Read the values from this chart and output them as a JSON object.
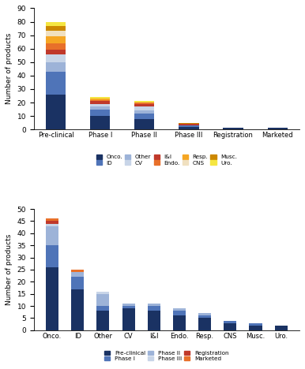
{
  "chart1": {
    "ylabel": "Number of products",
    "ylim": [
      0,
      90
    ],
    "yticks": [
      0,
      10,
      20,
      30,
      40,
      50,
      60,
      70,
      80,
      90
    ],
    "categories": [
      "Pre-clinical",
      "Phase I",
      "Phase II",
      "Phase III",
      "Registration",
      "Marketed"
    ],
    "legend_labels": [
      "Onco.",
      "ID",
      "Other",
      "CV",
      "I&I",
      "Endo.",
      "Resp.",
      "CNS",
      "Musc.",
      "Uro."
    ],
    "colors": [
      "#1a3263",
      "#4f74b8",
      "#9db3d8",
      "#c8d5e8",
      "#c0392b",
      "#e8702a",
      "#f5a623",
      "#f0e0c0",
      "#cc8800",
      "#f5e642"
    ],
    "data": {
      "Onco.": [
        26,
        10,
        8,
        2,
        1,
        1
      ],
      "ID": [
        17,
        5,
        4,
        1,
        0,
        0
      ],
      "Other": [
        7,
        2,
        2,
        0,
        0,
        0
      ],
      "CV": [
        6,
        2,
        3,
        0,
        0,
        0
      ],
      "I&I": [
        3,
        2,
        2,
        1,
        0,
        0
      ],
      "Endo.": [
        5,
        1,
        1,
        0,
        0,
        0
      ],
      "Resp.": [
        5,
        1,
        0,
        0,
        0,
        0
      ],
      "CNS": [
        4,
        0,
        0,
        0,
        0,
        0
      ],
      "Musc.": [
        4,
        0,
        0,
        1,
        0,
        0
      ],
      "Uro.": [
        3,
        1,
        1,
        0,
        0,
        0
      ]
    }
  },
  "chart2": {
    "ylabel": "Number of products",
    "ylim": [
      0,
      50
    ],
    "yticks": [
      0,
      5,
      10,
      15,
      20,
      25,
      30,
      35,
      40,
      45,
      50
    ],
    "categories": [
      "Onco.",
      "ID",
      "Other",
      "CV",
      "I&I",
      "Endo.",
      "Resp.",
      "CNS",
      "Musc.",
      "Uro."
    ],
    "legend_labels": [
      "Pre-clinical",
      "Phase I",
      "Phase II",
      "Phase III",
      "Registration",
      "Marketed"
    ],
    "colors": [
      "#1a3263",
      "#4f74b8",
      "#9db3d8",
      "#c8d5e8",
      "#c0392b",
      "#e8702a"
    ],
    "data": {
      "Pre-clinical": [
        26,
        17,
        8,
        9,
        8,
        6,
        5,
        3,
        2,
        2
      ],
      "Phase I": [
        9,
        5,
        2,
        1,
        2,
        2,
        1,
        1,
        1,
        0
      ],
      "Phase II": [
        8,
        2,
        5,
        1,
        1,
        1,
        1,
        0,
        0,
        0
      ],
      "Phase III": [
        1,
        0,
        1,
        0,
        0,
        0,
        0,
        0,
        0,
        0
      ],
      "Registration": [
        1,
        0,
        0,
        0,
        0,
        0,
        0,
        0,
        0,
        0
      ],
      "Marketed": [
        1,
        1,
        0,
        0,
        0,
        0,
        0,
        0,
        0,
        0
      ]
    }
  }
}
